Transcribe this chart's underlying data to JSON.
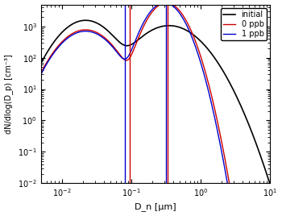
{
  "title": "",
  "xlabel": "D_n [μm]",
  "ylabel": "dN/dlog(D_p) [cm⁻³]",
  "xlim": [
    0.005,
    10
  ],
  "ylim": [
    0.01,
    5000
  ],
  "legend": [
    "initial",
    "0 ppb",
    "1 ppb"
  ],
  "colors": {
    "initial": "#000000",
    "0ppb": "#cc0000",
    "1ppb": "#0000cc"
  },
  "mode1": {
    "N": 1000,
    "Dg": 0.022,
    "sigma": 1.8
  },
  "mode2_initial": {
    "N": 800,
    "Dg": 0.35,
    "sigma": 2.0
  },
  "mode2_0ppb": {
    "N": 2500,
    "Dg": 0.32,
    "sigma": 1.5
  },
  "mode2_1ppb": {
    "N": 2500,
    "Dg": 0.3,
    "sigma": 1.5
  },
  "vlines_blue": [
    0.08,
    0.32
  ],
  "vlines_red": [
    0.095,
    0.33
  ],
  "background_color": "#ffffff"
}
